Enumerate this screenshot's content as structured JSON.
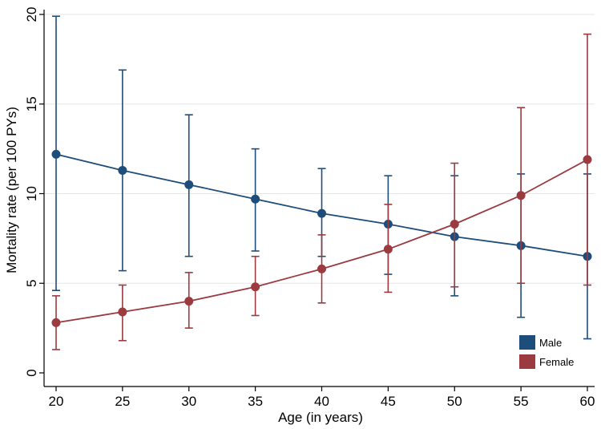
{
  "chart_data": {
    "type": "line",
    "title": "",
    "xlabel": "Age (in years)",
    "ylabel": "Mortality rate (per 100 PYs)",
    "xlim": [
      20,
      60
    ],
    "ylim": [
      0,
      20
    ],
    "xticks": [
      20,
      25,
      30,
      35,
      40,
      45,
      50,
      55,
      60
    ],
    "yticks": [
      0,
      5,
      10,
      15,
      20
    ],
    "grid": true,
    "legend_position": "bottom-right",
    "x": [
      20,
      25,
      30,
      35,
      40,
      45,
      50,
      55,
      60
    ],
    "series": [
      {
        "name": "Male",
        "color": "#1d4d7a",
        "values": [
          12.2,
          11.3,
          10.5,
          9.7,
          8.9,
          8.3,
          7.6,
          7.1,
          6.5
        ],
        "lower": [
          4.6,
          5.7,
          6.5,
          6.8,
          6.5,
          5.5,
          4.3,
          3.1,
          1.9
        ],
        "upper": [
          19.9,
          16.9,
          14.4,
          12.5,
          11.4,
          11.0,
          11.0,
          11.1,
          11.1
        ]
      },
      {
        "name": "Female",
        "color": "#9b3a3f",
        "values": [
          2.8,
          3.4,
          4.0,
          4.8,
          5.8,
          6.9,
          8.3,
          9.9,
          11.9
        ],
        "lower": [
          1.3,
          1.8,
          2.5,
          3.2,
          3.9,
          4.5,
          4.8,
          5.0,
          4.9
        ],
        "upper": [
          4.3,
          4.9,
          5.6,
          6.5,
          7.7,
          9.4,
          11.7,
          14.8,
          18.9
        ]
      }
    ]
  }
}
